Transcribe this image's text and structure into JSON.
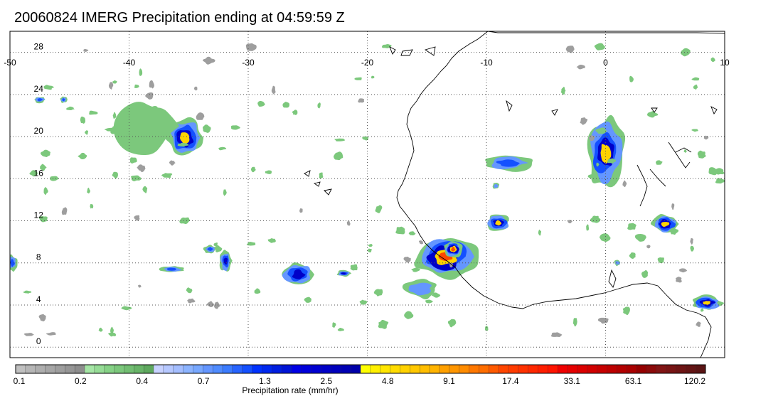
{
  "title": "20060824 IMERG Precipitation ending at 04:59:59 Z",
  "map": {
    "lon_range": [
      -50,
      10
    ],
    "lat_range": [
      -1,
      30
    ],
    "lon_ticks": [
      -50,
      -40,
      -30,
      -20,
      -10,
      0,
      10
    ],
    "lat_ticks": [
      0,
      4,
      8,
      12,
      16,
      20,
      24,
      28
    ],
    "grid": "dotted",
    "coastline_color": "#000000",
    "storms": [
      {
        "lon": -35.3,
        "lat": 19.9,
        "rx": 1.6,
        "ry": 1.9,
        "max_level": 5
      },
      {
        "lon": -38.5,
        "lat": 21.0,
        "rx": 2.5,
        "ry": 2.5,
        "max_level": 1
      },
      {
        "lon": 0.0,
        "lat": 18.5,
        "rx": 1.7,
        "ry": 3.3,
        "max_level": 5
      },
      {
        "lon": -9.0,
        "lat": 11.8,
        "rx": 1.0,
        "ry": 0.8,
        "max_level": 5
      },
      {
        "lon": 5.0,
        "lat": 11.7,
        "rx": 1.2,
        "ry": 0.9,
        "max_level": 5
      },
      {
        "lon": -13.5,
        "lat": 8.6,
        "rx": 2.6,
        "ry": 2.1,
        "max_level": 6
      },
      {
        "lon": -12.8,
        "lat": 9.3,
        "rx": 0.8,
        "ry": 0.8,
        "max_level": 6
      },
      {
        "lon": -15.5,
        "lat": 5.6,
        "rx": 1.6,
        "ry": 1.0,
        "max_level": 2
      },
      {
        "lon": -8.2,
        "lat": 17.5,
        "rx": 2.0,
        "ry": 0.8,
        "max_level": 3
      },
      {
        "lon": -25.8,
        "lat": 6.9,
        "rx": 1.5,
        "ry": 1.2,
        "max_level": 4
      },
      {
        "lon": -22.0,
        "lat": 7.0,
        "rx": 0.6,
        "ry": 0.3,
        "max_level": 4
      },
      {
        "lon": -36.4,
        "lat": 7.4,
        "rx": 1.0,
        "ry": 0.3,
        "max_level": 3
      },
      {
        "lon": -31.9,
        "lat": 8.2,
        "rx": 0.5,
        "ry": 1.1,
        "max_level": 4
      },
      {
        "lon": -33.2,
        "lat": 9.3,
        "rx": 0.5,
        "ry": 0.4,
        "max_level": 3
      },
      {
        "lon": 8.5,
        "lat": 4.2,
        "rx": 1.3,
        "ry": 0.7,
        "max_level": 5
      },
      {
        "lon": -49.8,
        "lat": 8.0,
        "rx": 0.4,
        "ry": 0.8,
        "max_level": 3
      },
      {
        "lon": -47.5,
        "lat": 23.5,
        "rx": 0.5,
        "ry": 0.3,
        "max_level": 3
      },
      {
        "lon": -45.5,
        "lat": 23.5,
        "rx": 0.3,
        "ry": 0.3,
        "max_level": 3
      },
      {
        "lon": -9.2,
        "lat": 15.3,
        "rx": 0.3,
        "ry": 0.3,
        "max_level": 2
      },
      {
        "lon": 1.0,
        "lat": 8.0,
        "rx": 0.3,
        "ry": 0.3,
        "max_level": 2
      }
    ]
  },
  "colorbar": {
    "label": "Precipitation rate (mm/hr)",
    "tick_labels": [
      "0.1",
      "0.2",
      "0.4",
      "0.7",
      "1.3",
      "2.5",
      "4.8",
      "9.1",
      "17.4",
      "33.1",
      "63.1",
      "120.2"
    ],
    "colors": [
      "#c0c0c0",
      "#b6b6b6",
      "#aeaeae",
      "#a6a6a6",
      "#9e9e9e",
      "#969696",
      "#8e8e8e",
      "#a6e6a6",
      "#96dc96",
      "#86d286",
      "#7cc87c",
      "#72be72",
      "#68b468",
      "#5ea85e",
      "#c8d2ff",
      "#b6c8ff",
      "#a4beff",
      "#8cb4ff",
      "#78a8ff",
      "#6496ff",
      "#508cff",
      "#3c7cff",
      "#2864ff",
      "#1450ff",
      "#0032ff",
      "#0028f0",
      "#001ee1",
      "#0014d7",
      "#0000e6",
      "#0000dc",
      "#0000d2",
      "#0000c8",
      "#0000be",
      "#0000b4",
      "#0000aa",
      "#ffff00",
      "#fff000",
      "#ffe600",
      "#ffdc00",
      "#ffd200",
      "#ffc800",
      "#ffbe00",
      "#ffb400",
      "#ffa000",
      "#ff9600",
      "#ff8c00",
      "#ff7800",
      "#ff6e00",
      "#ff5a00",
      "#ff4600",
      "#ff3c00",
      "#ff3200",
      "#ff2800",
      "#ff1e00",
      "#ff1400",
      "#f00000",
      "#e60000",
      "#dc0000",
      "#d20000",
      "#c80000",
      "#be0000",
      "#b40000",
      "#aa0000",
      "#960000",
      "#8c0a0a",
      "#821414",
      "#781414",
      "#6e1414",
      "#641414",
      "#5a1414"
    ]
  }
}
